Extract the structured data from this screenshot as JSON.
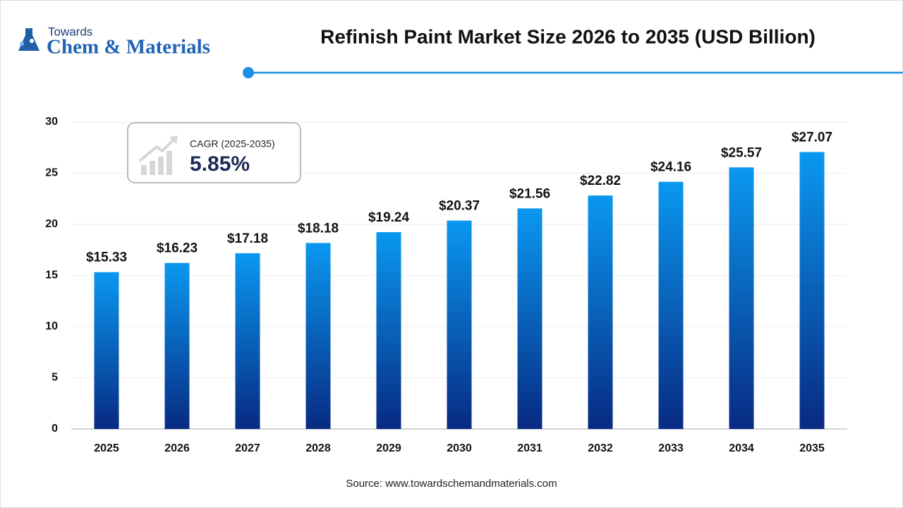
{
  "logo": {
    "top": "Towards",
    "main": "Chem & Materials"
  },
  "cagr": {
    "label": "CAGR (2025-2035)",
    "value": "5.85%"
  },
  "source": "Source: www.towardschemandmaterials.com",
  "chart_data": {
    "type": "bar",
    "title": "Refinish Paint Market Size 2026 to 2035 (USD Billion)",
    "categories": [
      "2025",
      "2026",
      "2027",
      "2028",
      "2029",
      "2030",
      "2031",
      "2032",
      "2033",
      "2034",
      "2035"
    ],
    "values": [
      15.33,
      16.23,
      17.18,
      18.18,
      19.24,
      20.37,
      21.56,
      22.82,
      24.16,
      25.57,
      27.07
    ],
    "value_labels": [
      "$15.33",
      "$16.23",
      "$17.18",
      "$18.18",
      "$19.24",
      "$20.37",
      "$21.56",
      "$22.82",
      "$24.16",
      "$25.57",
      "$27.07"
    ],
    "color": [
      "#0a98f0",
      "#082a82"
    ],
    "ylim": [
      0,
      30
    ],
    "yticks": [
      0,
      5,
      10,
      15,
      20,
      25,
      30
    ],
    "grid": true
  }
}
